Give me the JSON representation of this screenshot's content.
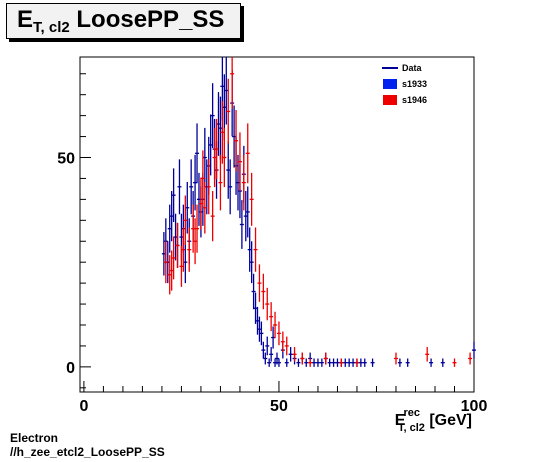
{
  "title": {
    "main": "E",
    "sub": "T, cl2",
    "rest": " LoosePP_SS"
  },
  "footer": {
    "line1": "Electron",
    "line2": "//h_zee_etcl2_LoosePP_SS"
  },
  "chart_data": {
    "type": "scatter",
    "xlabel": {
      "main": "E",
      "sup": "rec",
      "sub": "T, cl2",
      "unit": " [GeV]"
    },
    "xlim": [
      -1,
      100
    ],
    "ylim": [
      -6,
      74
    ],
    "xticks": [
      0,
      50,
      100
    ],
    "yticks": [
      0,
      50
    ],
    "grid": false,
    "legend_position": "top-right",
    "series": [
      {
        "name": "Data",
        "color": "#000099",
        "style": "errorbar",
        "x": [
          20.5,
          21,
          21.5,
          22,
          22.5,
          23,
          23.5,
          24,
          24.5,
          25,
          25.5,
          26,
          26.5,
          27,
          27.5,
          28,
          28.5,
          29,
          29.5,
          30,
          30.5,
          31,
          31.5,
          32,
          32.5,
          33,
          33.5,
          34,
          34.5,
          35,
          35.5,
          36,
          36.5,
          37,
          37.5,
          38,
          38.5,
          39,
          39.5,
          40,
          40.5,
          41,
          41.5,
          42,
          42.5,
          43,
          43.5,
          44,
          44.5,
          45,
          45.5,
          46,
          46.5,
          47,
          47.5,
          48,
          48.5,
          49,
          49.5,
          50,
          51,
          52,
          53,
          54,
          55,
          56,
          57,
          58,
          59,
          60,
          61,
          62,
          63,
          64,
          65,
          66,
          67,
          68,
          69,
          70,
          71,
          72,
          74,
          81,
          83,
          89,
          92,
          100
        ],
        "y": [
          27,
          30,
          25,
          33,
          36,
          41,
          31,
          29,
          43,
          31,
          33,
          25,
          38,
          30,
          43,
          36,
          44,
          51,
          40,
          37,
          40,
          50,
          43,
          48,
          53,
          60,
          52,
          47,
          58,
          57,
          67,
          62,
          66,
          47,
          43,
          63,
          55,
          48,
          44,
          42,
          34,
          46,
          36,
          37,
          28,
          25,
          18,
          14,
          11,
          9,
          8,
          4,
          2,
          5,
          1,
          3,
          7,
          1,
          2,
          1,
          4,
          1,
          3,
          2,
          1,
          2,
          1,
          2,
          1,
          1,
          1,
          2,
          1,
          1,
          1,
          1,
          1,
          1,
          1,
          1,
          1,
          1,
          1,
          1,
          1,
          1,
          1,
          4
        ]
      },
      {
        "name": "s1933",
        "color": "#0022ee",
        "style": "box"
      },
      {
        "name": "s1946",
        "color": "#ee0000",
        "style": "errorbar",
        "x": [
          21,
          22,
          22.5,
          23,
          24,
          25,
          25.5,
          26,
          27,
          28,
          28.5,
          29,
          30,
          30.5,
          31,
          32,
          33,
          33.5,
          34,
          35,
          35.5,
          36,
          37,
          38,
          39,
          40,
          41,
          42,
          43,
          44,
          45,
          46,
          47,
          48,
          49,
          50,
          51,
          52,
          54,
          56,
          58,
          62,
          66,
          70,
          80,
          88,
          95,
          99
        ],
        "y": [
          25,
          22,
          23,
          26,
          29,
          24,
          28,
          35,
          28,
          33,
          30,
          33,
          39,
          45,
          38,
          43,
          36,
          50,
          52,
          44,
          56,
          50,
          61,
          70,
          54,
          49,
          44,
          51,
          40,
          28,
          20,
          18,
          15,
          12,
          10,
          8,
          6,
          5,
          3,
          2,
          1,
          2,
          1,
          1,
          2,
          3,
          1,
          2
        ]
      }
    ]
  }
}
